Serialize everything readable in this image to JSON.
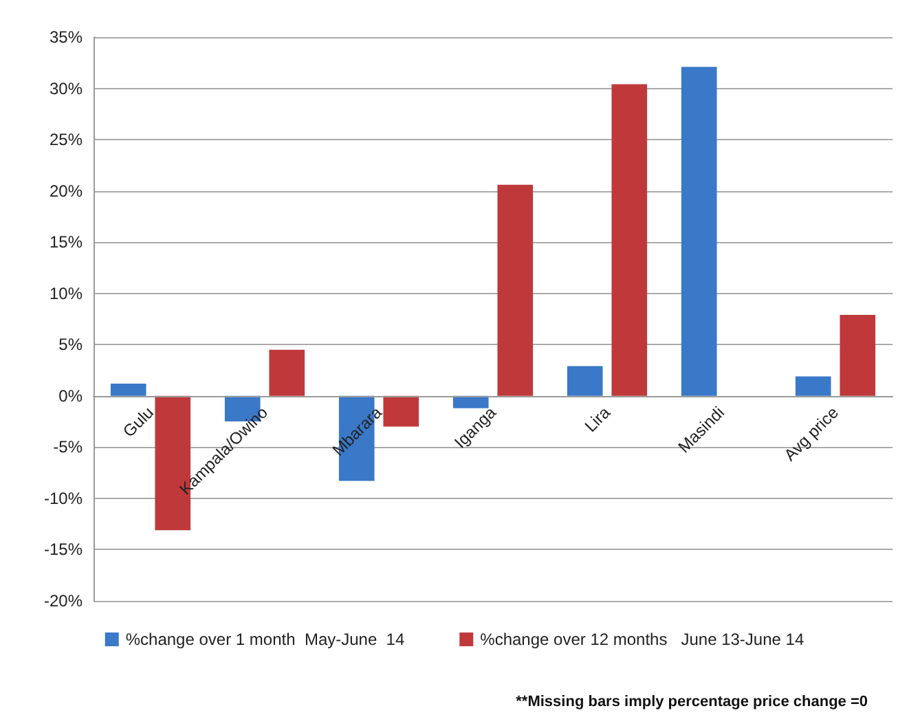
{
  "chart_data": {
    "type": "bar",
    "categories": [
      "Gulu",
      "Kampala/Owino",
      "Mbarara",
      "Iganga",
      "Lira",
      "Masindi",
      "Avg price"
    ],
    "series": [
      {
        "name": "%change over 1 month  May-June  14",
        "color": "#3a78c8",
        "values": [
          1.2,
          -2.5,
          -8.3,
          -1.2,
          2.9,
          32.1,
          1.9
        ]
      },
      {
        "name": "%change over 12 months   June 13-June 14",
        "color": "#c0393a",
        "values": [
          -13.1,
          4.5,
          -3.0,
          20.6,
          30.4,
          0,
          7.9
        ]
      }
    ],
    "ylim": [
      -20,
      35
    ],
    "yticks": [
      {
        "value": -20,
        "label": "-20%"
      },
      {
        "value": -15,
        "label": "-15%"
      },
      {
        "value": -10,
        "label": "-10%"
      },
      {
        "value": -5,
        "label": "-5%"
      },
      {
        "value": 0,
        "label": "0%"
      },
      {
        "value": 5,
        "label": "5%"
      },
      {
        "value": 10,
        "label": "10%"
      },
      {
        "value": 15,
        "label": "15%"
      },
      {
        "value": 20,
        "label": "20%"
      },
      {
        "value": 25,
        "label": "25%"
      },
      {
        "value": 30,
        "label": "30%"
      },
      {
        "value": 35,
        "label": "35%"
      }
    ],
    "grid": "y",
    "legend": "bottom",
    "annotations": [
      "**Missing bars imply percentage price change =0"
    ]
  }
}
